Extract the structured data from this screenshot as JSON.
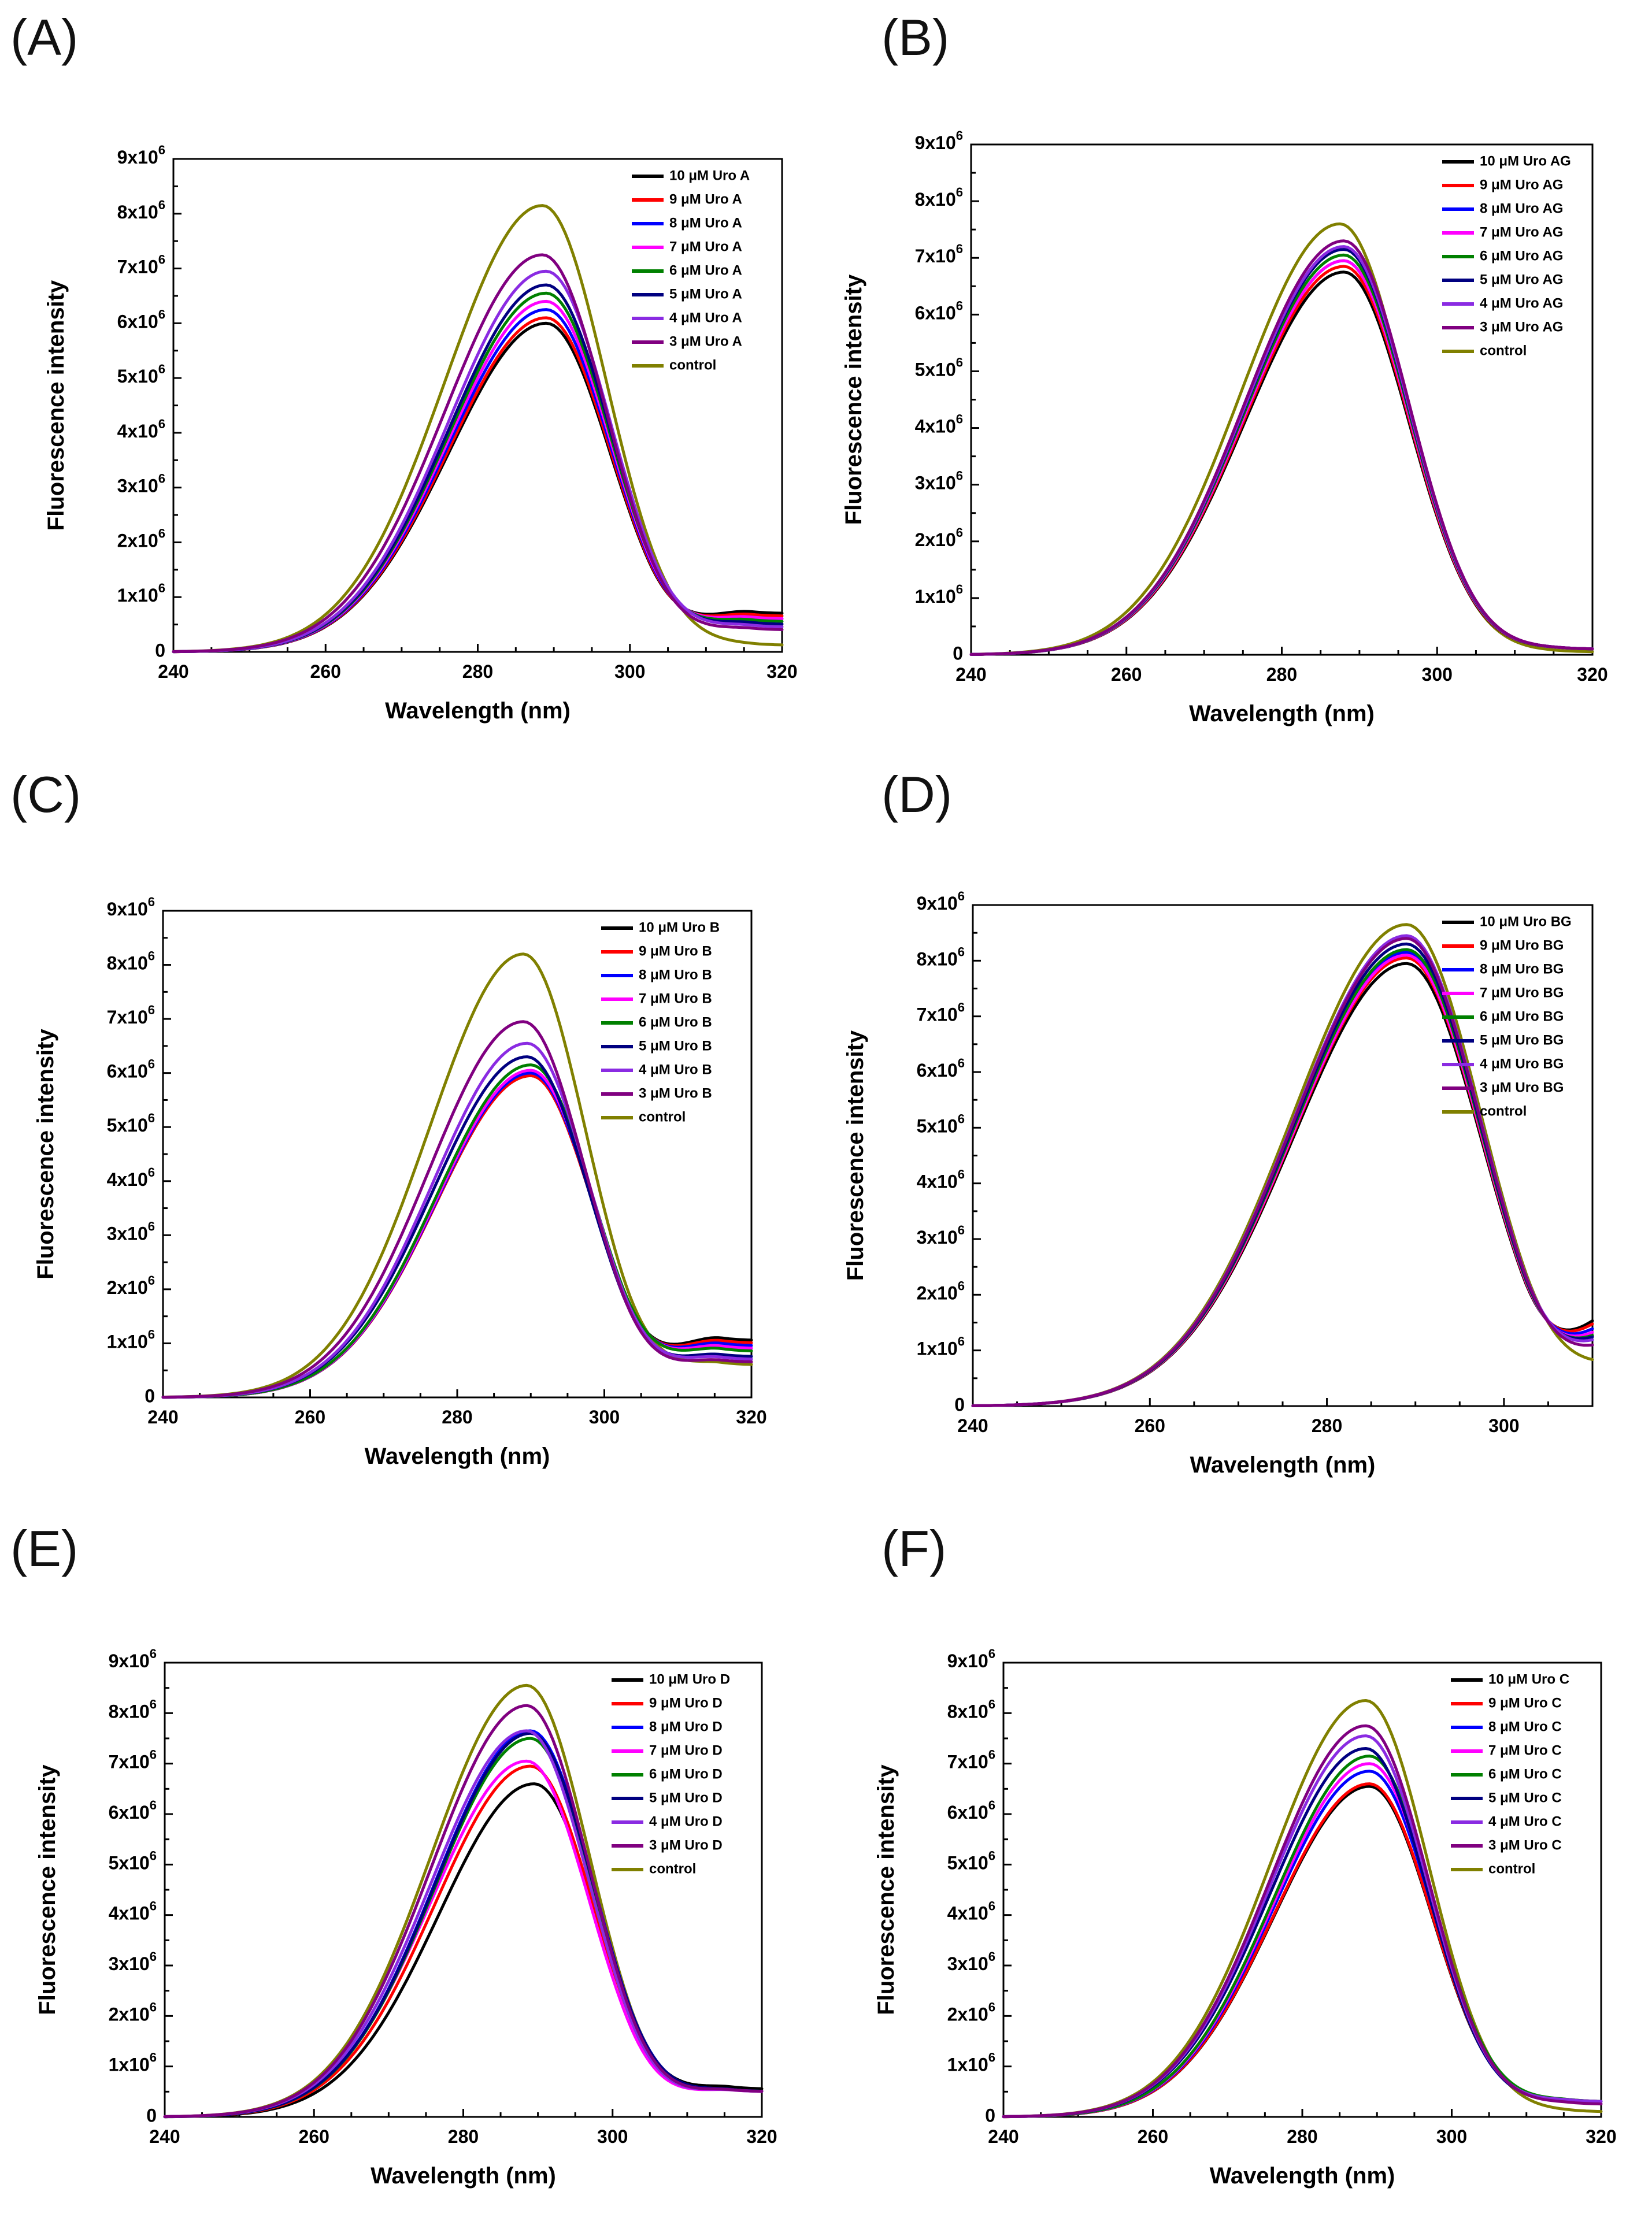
{
  "panels": [
    {
      "letter": "(A)",
      "compound": "Uro A",
      "legend": [
        "10 μM Uro A",
        "9 μM Uro A",
        "8 μM Uro A",
        "7 μM Uro A",
        "6 μM Uro A",
        "5 μM Uro A",
        "4 μM Uro A",
        "3 μM Uro A",
        "control"
      ],
      "xlabel": "Wavelength (nm)",
      "ylabel": "Fluorescence intensity"
    },
    {
      "letter": "(B)",
      "compound": "Uro AG",
      "legend": [
        "10 μM Uro AG",
        "9 μM Uro AG",
        "8 μM Uro AG",
        "7 μM Uro AG",
        "6 μM Uro AG",
        "5 μM Uro AG",
        "4 μM Uro AG",
        "3 μM Uro AG",
        "control"
      ],
      "xlabel": "Wavelength (nm)",
      "ylabel": "Fluorescence intensity"
    },
    {
      "letter": "(C)",
      "compound": "Uro B",
      "legend": [
        "10 μM Uro B",
        "9 μM Uro B",
        "8 μM Uro B",
        "7 μM Uro B",
        "6 μM Uro B",
        "5 μM Uro B",
        "4 μM Uro B",
        "3 μM Uro B",
        "control"
      ],
      "xlabel": "Wavelength (nm)",
      "ylabel": "Fluorescence intensity"
    },
    {
      "letter": "(D)",
      "compound": "Uro BG",
      "legend": [
        "10 μM Uro BG",
        "9 μM Uro BG",
        "8 μM Uro BG",
        "7 μM Uro BG",
        "6 μM Uro BG",
        "5 μM Uro BG",
        "4 μM Uro BG",
        "3 μM Uro BG",
        "control"
      ],
      "xlabel": "Wavelength (nm)",
      "ylabel": "Fluorescence intensity"
    },
    {
      "letter": "(E)",
      "compound": "Uro D",
      "legend": [
        "10 μM Uro D",
        "9 μM Uro D",
        "8 μM Uro D",
        "7 μM Uro D",
        "6 μM Uro D",
        "5 μM Uro D",
        "4 μM Uro D",
        "3 μM Uro D",
        "control"
      ],
      "xlabel": "Wavelength (nm)",
      "ylabel": "Fluorescence intensity"
    },
    {
      "letter": "(F)",
      "compound": "Uro C",
      "legend": [
        "10 μM Uro C",
        "9 μM Uro C",
        "8 μM Uro C",
        "7 μM Uro C",
        "6 μM Uro C",
        "5 μM Uro C",
        "4 μM Uro C",
        "3 μM Uro C",
        "control"
      ],
      "xlabel": "Wavelength (nm)",
      "ylabel": "Fluorescence intensity"
    }
  ],
  "series_colors": [
    "#000000",
    "#ff0000",
    "#0000ff",
    "#ff00ff",
    "#008000",
    "#000080",
    "#8a2be2",
    "#800080",
    "#808000"
  ],
  "chart_data": [
    {
      "type": "line",
      "title": "(A)",
      "xlabel": "Wavelength (nm)",
      "ylabel": "Fluorescence intensity",
      "xlim": [
        240,
        320
      ],
      "ylim": [
        0,
        9000000
      ],
      "xticks": [
        "240",
        "260",
        "280",
        "300",
        "320"
      ],
      "yticks": [
        "0",
        "1x10^6",
        "2x10^6",
        "3x10^6",
        "4x10^6",
        "5x10^6",
        "6x10^6",
        "7x10^6",
        "8x10^6",
        "9x10^6"
      ],
      "series": [
        {
          "name": "10 μM Uro A",
          "peak": 6000000,
          "peak_x": 289.0,
          "end_y": 700000
        },
        {
          "name": "9 μM Uro A",
          "peak": 6100000,
          "peak_x": 289.0,
          "end_y": 650000
        },
        {
          "name": "8 μM Uro A",
          "peak": 6250000,
          "peak_x": 289.0,
          "end_y": 600000
        },
        {
          "name": "7 μM Uro A",
          "peak": 6400000,
          "peak_x": 289.0,
          "end_y": 600000
        },
        {
          "name": "6 μM Uro A",
          "peak": 6550000,
          "peak_x": 289.0,
          "end_y": 550000
        },
        {
          "name": "5 μM Uro A",
          "peak": 6700000,
          "peak_x": 289.0,
          "end_y": 500000
        },
        {
          "name": "4 μM Uro A",
          "peak": 6950000,
          "peak_x": 289.0,
          "end_y": 450000
        },
        {
          "name": "3 μM Uro A",
          "peak": 7250000,
          "peak_x": 288.5,
          "end_y": 400000
        },
        {
          "name": "control",
          "peak": 8150000,
          "peak_x": 288.5,
          "end_y": 120000
        }
      ]
    },
    {
      "type": "line",
      "title": "(B)",
      "xlabel": "Wavelength (nm)",
      "ylabel": "Fluorescence intensity",
      "xlim": [
        240,
        320
      ],
      "ylim": [
        0,
        9000000
      ],
      "xticks": [
        "240",
        "260",
        "280",
        "300",
        "320"
      ],
      "yticks": [
        "0",
        "1x10^6",
        "2x10^6",
        "3x10^6",
        "4x10^6",
        "5x10^6",
        "6x10^6",
        "7x10^6",
        "8x10^6",
        "9x10^6"
      ],
      "series": [
        {
          "name": "10 μM Uro AG",
          "peak": 6750000,
          "peak_x": 288.0,
          "end_y": 100000
        },
        {
          "name": "9 μM Uro AG",
          "peak": 6850000,
          "peak_x": 288.0,
          "end_y": 100000
        },
        {
          "name": "8 μM Uro AG",
          "peak": 6950000,
          "peak_x": 288.0,
          "end_y": 100000
        },
        {
          "name": "7 μM Uro AG",
          "peak": 6950000,
          "peak_x": 288.0,
          "end_y": 100000
        },
        {
          "name": "6 μM Uro AG",
          "peak": 7050000,
          "peak_x": 288.0,
          "end_y": 100000
        },
        {
          "name": "5 μM Uro AG",
          "peak": 7150000,
          "peak_x": 288.0,
          "end_y": 100000
        },
        {
          "name": "4 μM Uro AG",
          "peak": 7200000,
          "peak_x": 288.0,
          "end_y": 100000
        },
        {
          "name": "3 μM Uro AG",
          "peak": 7300000,
          "peak_x": 288.0,
          "end_y": 100000
        },
        {
          "name": "control",
          "peak": 7600000,
          "peak_x": 287.5,
          "end_y": 50000
        }
      ]
    },
    {
      "type": "line",
      "title": "(C)",
      "xlabel": "Wavelength (nm)",
      "ylabel": "Fluorescence intensity",
      "xlim": [
        240,
        320
      ],
      "ylim": [
        0,
        9000000
      ],
      "xticks": [
        "240",
        "260",
        "280",
        "300",
        "320"
      ],
      "yticks": [
        "0",
        "1x10^6",
        "2x10^6",
        "3x10^6",
        "4x10^6",
        "5x10^6",
        "6x10^6",
        "7x10^6",
        "8x10^6",
        "9x10^6"
      ],
      "series": [
        {
          "name": "10 μM Uro B",
          "peak": 5950000,
          "peak_x": 290.0,
          "end_y": 1050000
        },
        {
          "name": "9 μM Uro B",
          "peak": 5950000,
          "peak_x": 290.0,
          "end_y": 1000000
        },
        {
          "name": "8 μM Uro B",
          "peak": 6000000,
          "peak_x": 290.0,
          "end_y": 950000
        },
        {
          "name": "7 μM Uro B",
          "peak": 6050000,
          "peak_x": 290.0,
          "end_y": 900000
        },
        {
          "name": "6 μM Uro B",
          "peak": 6150000,
          "peak_x": 290.0,
          "end_y": 850000
        },
        {
          "name": "5 μM Uro B",
          "peak": 6300000,
          "peak_x": 289.5,
          "end_y": 750000
        },
        {
          "name": "4 μM Uro B",
          "peak": 6550000,
          "peak_x": 289.5,
          "end_y": 700000
        },
        {
          "name": "3 μM Uro B",
          "peak": 6950000,
          "peak_x": 289.0,
          "end_y": 650000
        },
        {
          "name": "control",
          "peak": 8200000,
          "peak_x": 289.0,
          "end_y": 600000
        }
      ]
    },
    {
      "type": "line",
      "title": "(D)",
      "xlabel": "Wavelength (nm)",
      "ylabel": "Fluorescence intensity",
      "xlim": [
        240,
        310
      ],
      "ylim": [
        0,
        9000000
      ],
      "xticks": [
        "240",
        "260",
        "280",
        "300"
      ],
      "yticks": [
        "0",
        "1x10^6",
        "2x10^6",
        "3x10^6",
        "4x10^6",
        "5x10^6",
        "6x10^6",
        "7x10^6",
        "8x10^6",
        "9x10^6"
      ],
      "series": [
        {
          "name": "10 μM Uro BG",
          "peak": 7950000,
          "peak_x": 289.0,
          "end_y": 1950000
        },
        {
          "name": "9 μM Uro BG",
          "peak": 8050000,
          "peak_x": 289.0,
          "end_y": 1850000
        },
        {
          "name": "8 μM Uro BG",
          "peak": 8150000,
          "peak_x": 289.0,
          "end_y": 1700000
        },
        {
          "name": "7 μM Uro BG",
          "peak": 8100000,
          "peak_x": 289.0,
          "end_y": 1600000
        },
        {
          "name": "6 μM Uro BG",
          "peak": 8200000,
          "peak_x": 289.0,
          "end_y": 1500000
        },
        {
          "name": "5 μM Uro BG",
          "peak": 8300000,
          "peak_x": 289.0,
          "end_y": 1450000
        },
        {
          "name": "4 μM Uro BG",
          "peak": 8450000,
          "peak_x": 289.0,
          "end_y": 1350000
        },
        {
          "name": "3 μM Uro BG",
          "peak": 8400000,
          "peak_x": 289.0,
          "end_y": 1200000
        },
        {
          "name": "control",
          "peak": 8650000,
          "peak_x": 289.0,
          "end_y": 750000
        }
      ]
    },
    {
      "type": "line",
      "title": "(E)",
      "xlabel": "Wavelength (nm)",
      "ylabel": "Fluorescence intensity",
      "xlim": [
        240,
        320
      ],
      "ylim": [
        0,
        9000000
      ],
      "xticks": [
        "240",
        "260",
        "280",
        "300",
        "320"
      ],
      "yticks": [
        "0",
        "1x10^6",
        "2x10^6",
        "3x10^6",
        "4x10^6",
        "5x10^6",
        "6x10^6",
        "7x10^6",
        "8x10^6",
        "9x10^6"
      ],
      "series": [
        {
          "name": "10 μM Uro D",
          "peak": 6600000,
          "peak_x": 289.5,
          "end_y": 550000
        },
        {
          "name": "9 μM Uro D",
          "peak": 6950000,
          "peak_x": 289.0,
          "end_y": 500000
        },
        {
          "name": "8 μM Uro D",
          "peak": 7650000,
          "peak_x": 289.0,
          "end_y": 500000
        },
        {
          "name": "7 μM Uro D",
          "peak": 7050000,
          "peak_x": 288.5,
          "end_y": 500000
        },
        {
          "name": "6 μM Uro D",
          "peak": 7500000,
          "peak_x": 289.0,
          "end_y": 500000
        },
        {
          "name": "5 μM Uro D",
          "peak": 7600000,
          "peak_x": 289.0,
          "end_y": 500000
        },
        {
          "name": "4 μM Uro D",
          "peak": 7650000,
          "peak_x": 288.5,
          "end_y": 500000
        },
        {
          "name": "3 μM Uro D",
          "peak": 8150000,
          "peak_x": 288.5,
          "end_y": 500000
        },
        {
          "name": "control",
          "peak": 8550000,
          "peak_x": 288.5,
          "end_y": 550000
        }
      ]
    },
    {
      "type": "line",
      "title": "(F)",
      "xlabel": "Wavelength (nm)",
      "ylabel": "Fluorescence intensity",
      "xlim": [
        240,
        320
      ],
      "ylim": [
        0,
        9000000
      ],
      "xticks": [
        "240",
        "260",
        "280",
        "300",
        "320"
      ],
      "yticks": [
        "0",
        "1x10^6",
        "2x10^6",
        "3x10^6",
        "4x10^6",
        "5x10^6",
        "6x10^6",
        "7x10^6",
        "8x10^6",
        "9x10^6"
      ],
      "series": [
        {
          "name": "10 μM Uro C",
          "peak": 6550000,
          "peak_x": 289.0,
          "end_y": 300000
        },
        {
          "name": "9 μM Uro C",
          "peak": 6600000,
          "peak_x": 289.0,
          "end_y": 300000
        },
        {
          "name": "8 μM Uro C",
          "peak": 6850000,
          "peak_x": 289.0,
          "end_y": 300000
        },
        {
          "name": "7 μM Uro C",
          "peak": 7000000,
          "peak_x": 289.0,
          "end_y": 300000
        },
        {
          "name": "6 μM Uro C",
          "peak": 7150000,
          "peak_x": 289.0,
          "end_y": 300000
        },
        {
          "name": "5 μM Uro C",
          "peak": 7300000,
          "peak_x": 288.5,
          "end_y": 300000
        },
        {
          "name": "4 μM Uro C",
          "peak": 7550000,
          "peak_x": 288.5,
          "end_y": 300000
        },
        {
          "name": "3 μM Uro C",
          "peak": 7750000,
          "peak_x": 288.5,
          "end_y": 250000
        },
        {
          "name": "control",
          "peak": 8250000,
          "peak_x": 288.5,
          "end_y": 100000
        }
      ]
    }
  ]
}
